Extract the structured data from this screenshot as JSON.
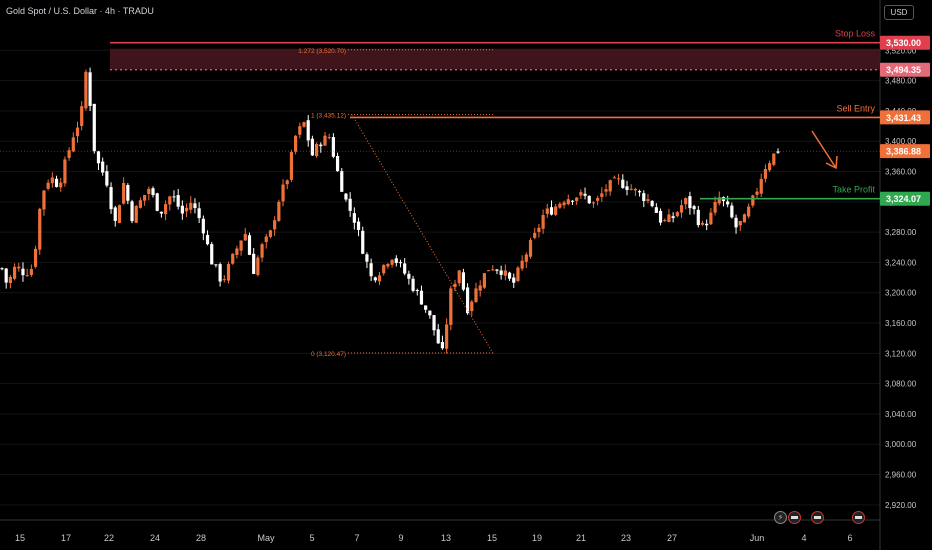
{
  "header": {
    "symbol_title": "Gold Spot / U.S. Dollar · 4h · TRADU",
    "currency": "USD"
  },
  "colors": {
    "up": "#f0703a",
    "down": "#ffffff",
    "stop": "#e0404e",
    "sell": "#f0703a",
    "take": "#2fa84f",
    "zone": "#4a1820",
    "grid": "#141414"
  },
  "chart_data": {
    "type": "candlestick",
    "title": "Gold Spot / U.S. Dollar · 4h · TRADU",
    "y_range": [
      2900,
      3560
    ],
    "y_ticks": [
      3520,
      3480,
      3440,
      3400,
      3360,
      3320,
      3280,
      3240,
      3200,
      3160,
      3120,
      3080,
      3040,
      3000,
      2960,
      2920
    ],
    "y_tick_labels": [
      "3,520.00",
      "3,480.00",
      "3,440.00",
      "3,400.00",
      "3,360.00",
      "3,320.00",
      "3,280.00",
      "3,240.00",
      "3,200.00",
      "3,160.00",
      "3,120.00",
      "3,080.00",
      "3,040.00",
      "3,000.00",
      "2,960.00",
      "2,920.00"
    ],
    "x_ticks": [
      {
        "label": "15",
        "pos": 20
      },
      {
        "label": "17",
        "pos": 66
      },
      {
        "label": "22",
        "pos": 109
      },
      {
        "label": "24",
        "pos": 155
      },
      {
        "label": "28",
        "pos": 201
      },
      {
        "label": "May",
        "pos": 266
      },
      {
        "label": "5",
        "pos": 312
      },
      {
        "label": "7",
        "pos": 357
      },
      {
        "label": "9",
        "pos": 401
      },
      {
        "label": "13",
        "pos": 446
      },
      {
        "label": "15",
        "pos": 492
      },
      {
        "label": "19",
        "pos": 537
      },
      {
        "label": "21",
        "pos": 581
      },
      {
        "label": "23",
        "pos": 626
      },
      {
        "label": "27",
        "pos": 672
      },
      {
        "label": "Jun",
        "pos": 757
      },
      {
        "label": "4",
        "pos": 804
      },
      {
        "label": "6",
        "pos": 850
      }
    ],
    "x_axis_note": "pos is percentage-free candle index anchor (0-185 scale of plotted bars)",
    "anchors": [
      [
        0,
        3232
      ],
      [
        4,
        3208
      ],
      [
        8,
        3232
      ],
      [
        12,
        3232
      ],
      [
        16,
        3226
      ],
      [
        22,
        3234
      ],
      [
        28,
        3330
      ],
      [
        34,
        3354
      ],
      [
        40,
        3342
      ],
      [
        46,
        3378
      ],
      [
        50,
        3406
      ],
      [
        56,
        3432
      ],
      [
        60,
        3500
      ],
      [
        66,
        3378
      ],
      [
        74,
        3350
      ],
      [
        80,
        3290
      ],
      [
        86,
        3346
      ],
      [
        92,
        3300
      ],
      [
        98,
        3320
      ],
      [
        104,
        3338
      ],
      [
        112,
        3306
      ],
      [
        120,
        3330
      ],
      [
        128,
        3304
      ],
      [
        134,
        3320
      ],
      [
        142,
        3290
      ],
      [
        148,
        3244
      ],
      [
        156,
        3214
      ],
      [
        164,
        3248
      ],
      [
        172,
        3282
      ],
      [
        178,
        3228
      ],
      [
        184,
        3260
      ],
      [
        190,
        3276
      ],
      [
        196,
        3322
      ],
      [
        202,
        3350
      ],
      [
        208,
        3406
      ],
      [
        214,
        3424
      ],
      [
        220,
        3382
      ],
      [
        226,
        3400
      ],
      [
        232,
        3406
      ],
      [
        238,
        3358
      ],
      [
        244,
        3320
      ],
      [
        250,
        3296
      ],
      [
        256,
        3256
      ],
      [
        262,
        3218
      ],
      [
        268,
        3230
      ],
      [
        276,
        3250
      ],
      [
        282,
        3236
      ],
      [
        290,
        3212
      ],
      [
        298,
        3188
      ],
      [
        304,
        3164
      ],
      [
        312,
        3118
      ],
      [
        318,
        3200
      ],
      [
        324,
        3232
      ],
      [
        330,
        3180
      ],
      [
        338,
        3212
      ],
      [
        346,
        3236
      ],
      [
        354,
        3230
      ],
      [
        362,
        3210
      ],
      [
        370,
        3246
      ],
      [
        378,
        3276
      ],
      [
        384,
        3304
      ],
      [
        390,
        3310
      ],
      [
        398,
        3324
      ],
      [
        406,
        3328
      ],
      [
        412,
        3328
      ],
      [
        420,
        3316
      ],
      [
        428,
        3338
      ],
      [
        436,
        3348
      ],
      [
        444,
        3340
      ],
      [
        452,
        3330
      ],
      [
        460,
        3320
      ],
      [
        468,
        3292
      ],
      [
        476,
        3300
      ],
      [
        484,
        3322
      ],
      [
        490,
        3310
      ],
      [
        496,
        3286
      ],
      [
        502,
        3300
      ],
      [
        508,
        3326
      ],
      [
        514,
        3312
      ],
      [
        520,
        3286
      ],
      [
        526,
        3296
      ],
      [
        534,
        3330
      ],
      [
        540,
        3364
      ],
      [
        546,
        3380
      ],
      [
        550,
        3388
      ]
    ],
    "candle_count": 186,
    "last_price": 3386.88,
    "levels": [
      {
        "name": "Stop Loss",
        "label": "Stop Loss",
        "price": 3530.0,
        "price_label": "3,530.00",
        "color": "#e0404e"
      },
      {
        "name": "Sell Entry",
        "label": "Sell Entry",
        "price": 3431.43,
        "price_label": "3,431.43",
        "color": "#f0703a"
      },
      {
        "name": "Take Profit",
        "label": "Take Profit",
        "price": 3324.07,
        "price_label": "3,324.07",
        "color": "#2fa84f"
      }
    ],
    "current_price_label": "3,386.88",
    "resistance_label": "3,494.35",
    "resistance_price": 3494.35,
    "fib": [
      {
        "label": "1.272 (3,520.70)",
        "price": 3520.7
      },
      {
        "label": "1 (3,435.12)",
        "price": 3435.12
      },
      {
        "label": "0 (3,120.47)",
        "price": 3120.47
      }
    ]
  }
}
